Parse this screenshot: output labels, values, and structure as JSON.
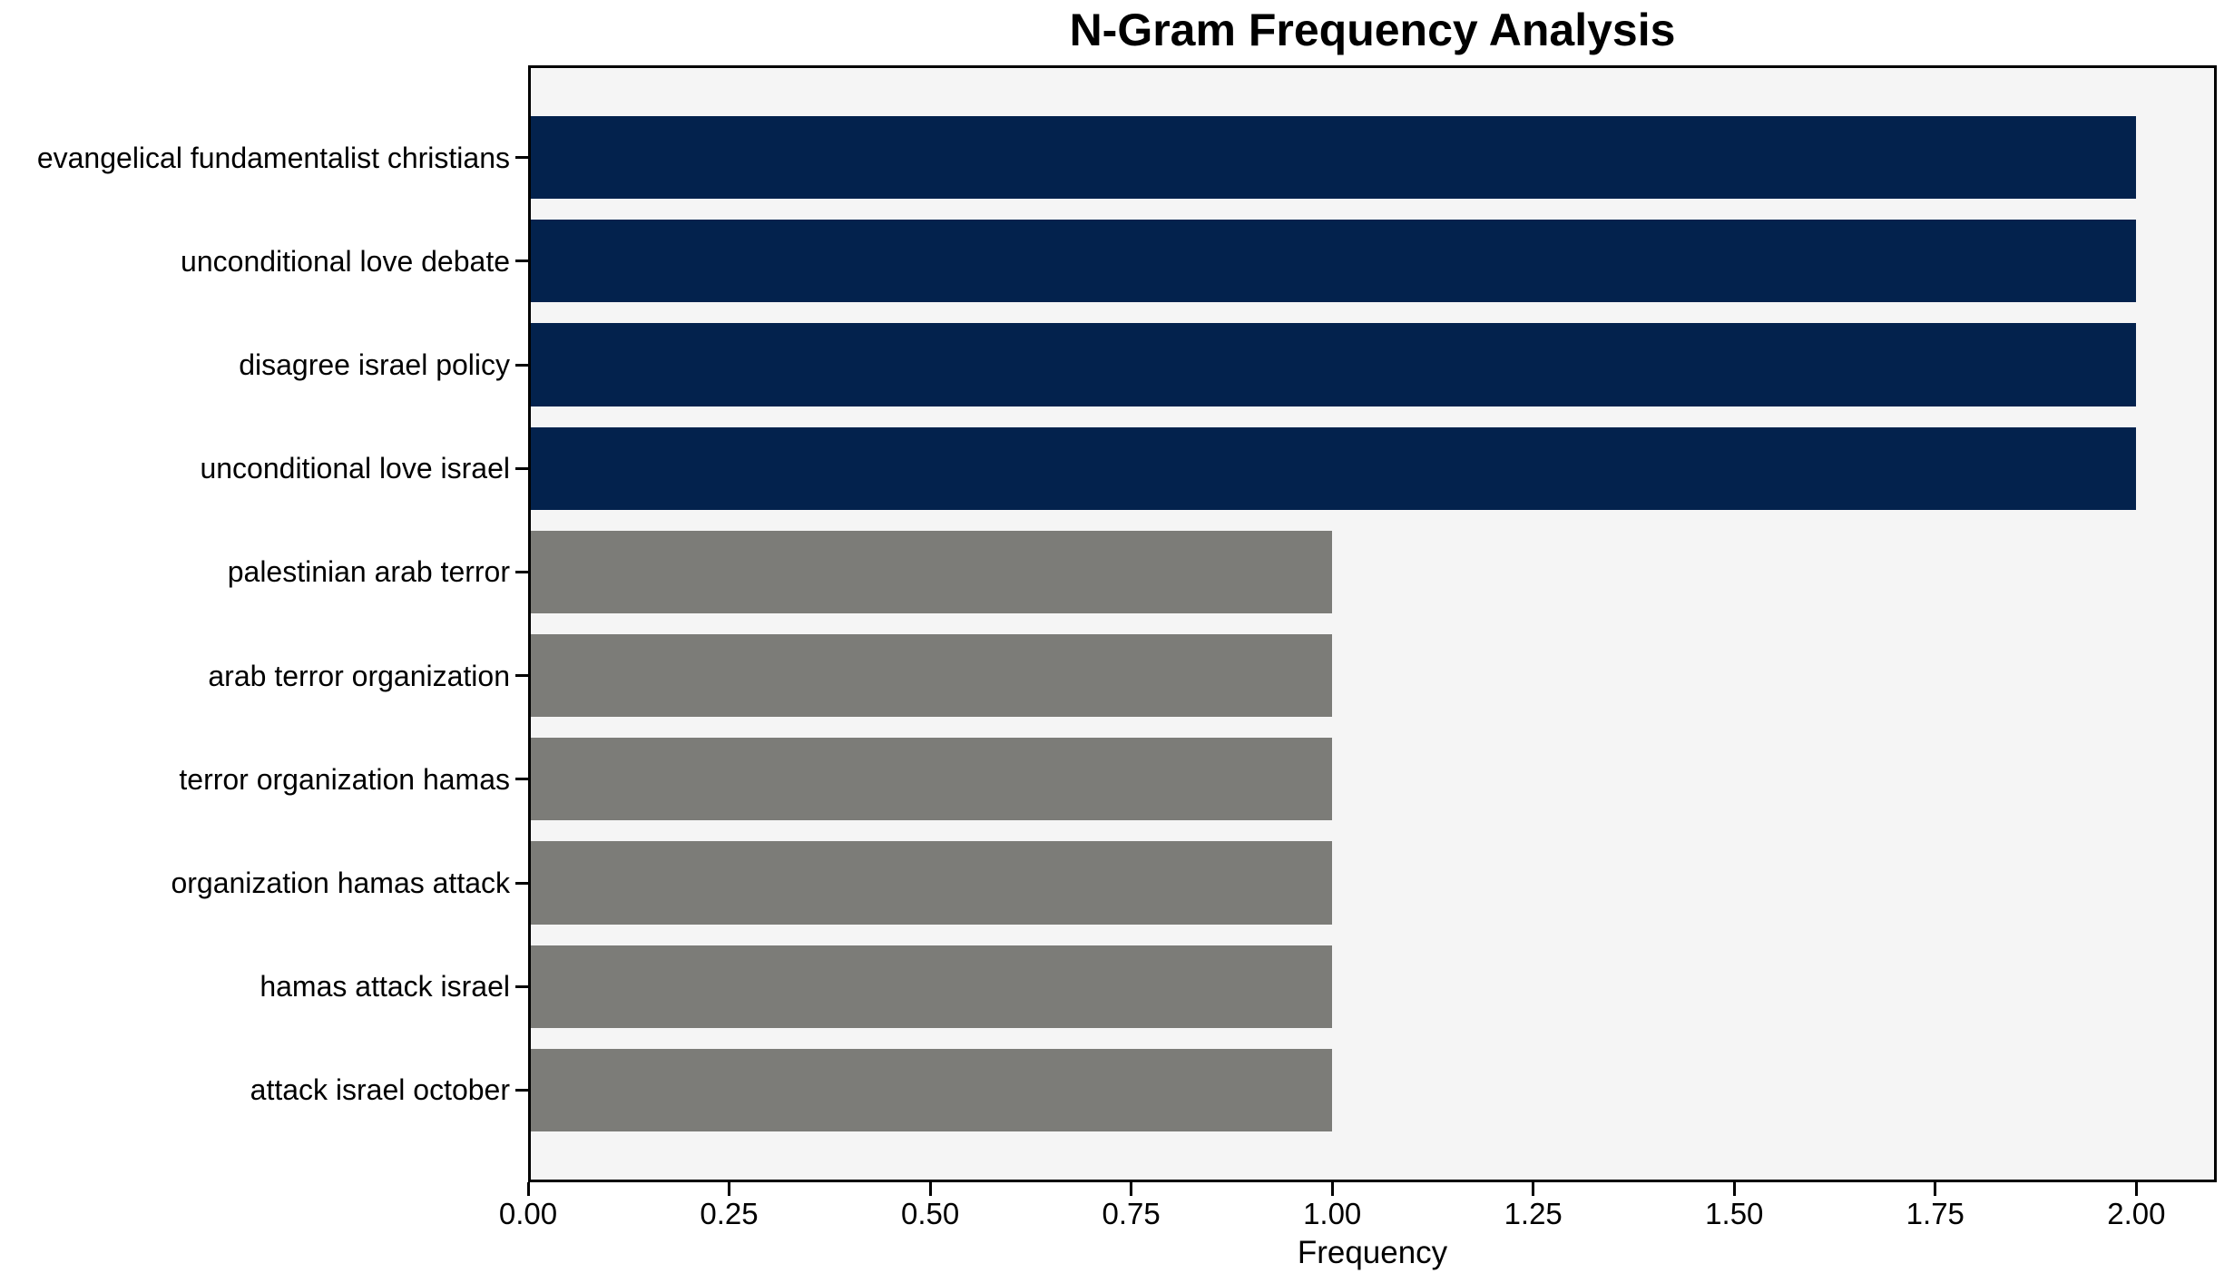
{
  "chart_data": {
    "type": "bar",
    "orientation": "horizontal",
    "title": "N-Gram Frequency Analysis",
    "xlabel": "Frequency",
    "ylabel": "",
    "categories": [
      "evangelical fundamentalist christians",
      "unconditional love debate",
      "disagree israel policy",
      "unconditional love israel",
      "palestinian arab terror",
      "arab terror organization",
      "terror organization hamas",
      "organization hamas attack",
      "hamas attack israel",
      "attack israel october"
    ],
    "values": [
      2,
      2,
      2,
      2,
      1,
      1,
      1,
      1,
      1,
      1
    ],
    "bar_colors": [
      "#03224d",
      "#03224d",
      "#03224d",
      "#03224d",
      "#7c7c78",
      "#7c7c78",
      "#7c7c78",
      "#7c7c78",
      "#7c7c78",
      "#7c7c78"
    ],
    "x_ticks": [
      {
        "value": 0.0,
        "label": "0.00"
      },
      {
        "value": 0.25,
        "label": "0.25"
      },
      {
        "value": 0.5,
        "label": "0.50"
      },
      {
        "value": 0.75,
        "label": "0.75"
      },
      {
        "value": 1.0,
        "label": "1.00"
      },
      {
        "value": 1.25,
        "label": "1.25"
      },
      {
        "value": 1.5,
        "label": "1.50"
      },
      {
        "value": 1.75,
        "label": "1.75"
      },
      {
        "value": 2.0,
        "label": "2.00"
      }
    ],
    "xlim": [
      0,
      2.1
    ],
    "grid": false,
    "legend": false,
    "colors": {
      "highlight": "#03224d",
      "default_bar": "#7c7c78",
      "plot_bg": "#f5f5f5",
      "figure_bg": "#ffffff",
      "spine": "#000000",
      "text": "#000000"
    }
  }
}
